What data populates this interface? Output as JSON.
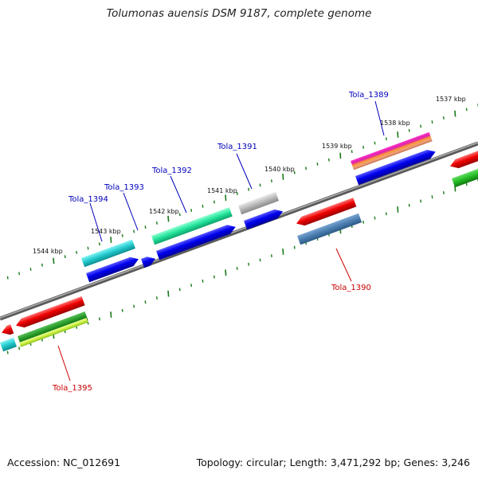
{
  "title": "Tolumonas auensis DSM 9187, complete genome",
  "footer": {
    "accession": "Accession: NC_012691",
    "info": "Topology: circular; Length: 3,471,292 bp; Genes: 3,246"
  },
  "ticks": [
    {
      "label": "1537 kbp"
    },
    {
      "label": "1538 kbp"
    },
    {
      "label": "1539 kbp"
    },
    {
      "label": "1540 kbp"
    },
    {
      "label": "1541 kbp"
    },
    {
      "label": "1542 kbp"
    },
    {
      "label": "1543 kbp"
    },
    {
      "label": "1544 kbp"
    }
  ],
  "gene_labels": [
    {
      "name": "Tola_1389",
      "color": "#0000bb"
    },
    {
      "name": "Tola_1390",
      "color": "#cc0000"
    },
    {
      "name": "Tola_1391",
      "color": "#0000bb"
    },
    {
      "name": "Tola_1392",
      "color": "#0000bb"
    },
    {
      "name": "Tola_1393",
      "color": "#0000bb"
    },
    {
      "name": "Tola_1394",
      "color": "#0000bb"
    },
    {
      "name": "Tola_1395",
      "color": "#cc0000"
    }
  ],
  "colors": {
    "backbone": "#808080",
    "tick": "#1a7a1a",
    "forward_cds": "#0000ee",
    "reverse_cds": "#ee0000"
  }
}
